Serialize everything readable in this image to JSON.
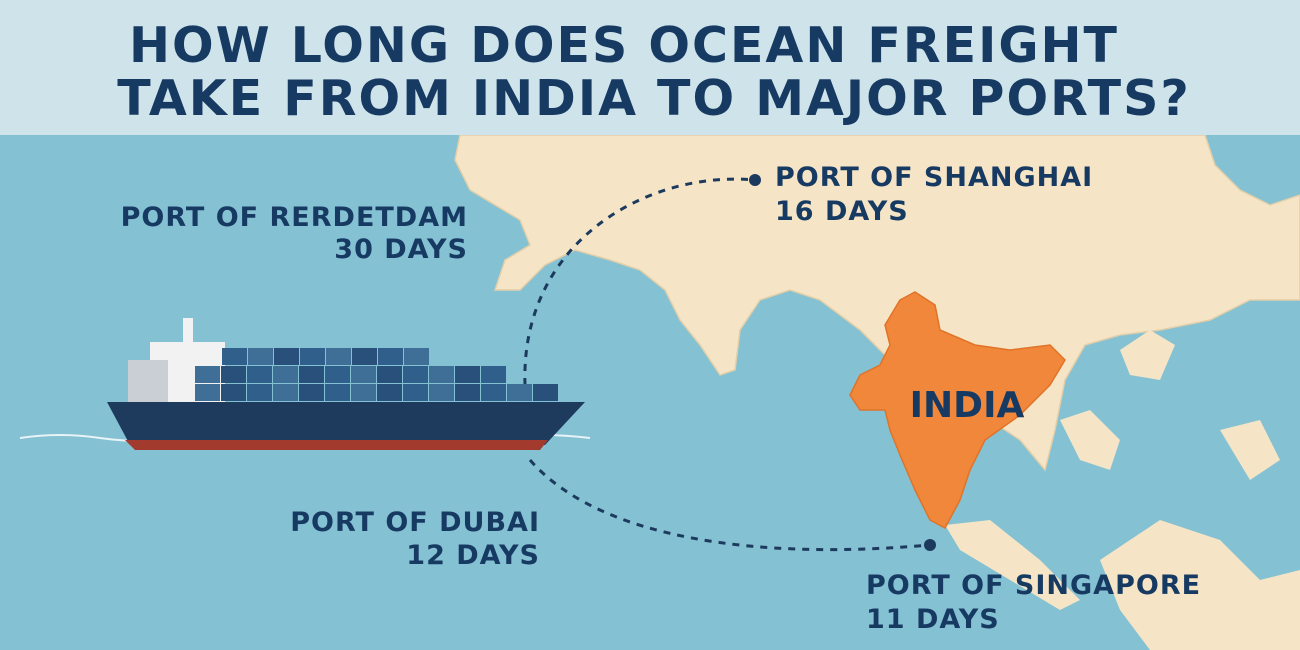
{
  "title": [
    "HOW LONG DOES OCEAN FREIGHT",
    "TAKE FROM INDIA TO MAJOR PORTS?"
  ],
  "map_label": "INDIA",
  "ports": [
    {
      "name": "PORT OF SHANGHAI",
      "duration": "16 DAYS"
    },
    {
      "name": "PORT OF RERDETDAM",
      "duration": "30 DAYS"
    },
    {
      "name": "PORT OF DUBAI",
      "duration": "12 DAYS"
    },
    {
      "name": "PORT OF SINGAPORE",
      "duration": "11 DAYS"
    }
  ]
}
